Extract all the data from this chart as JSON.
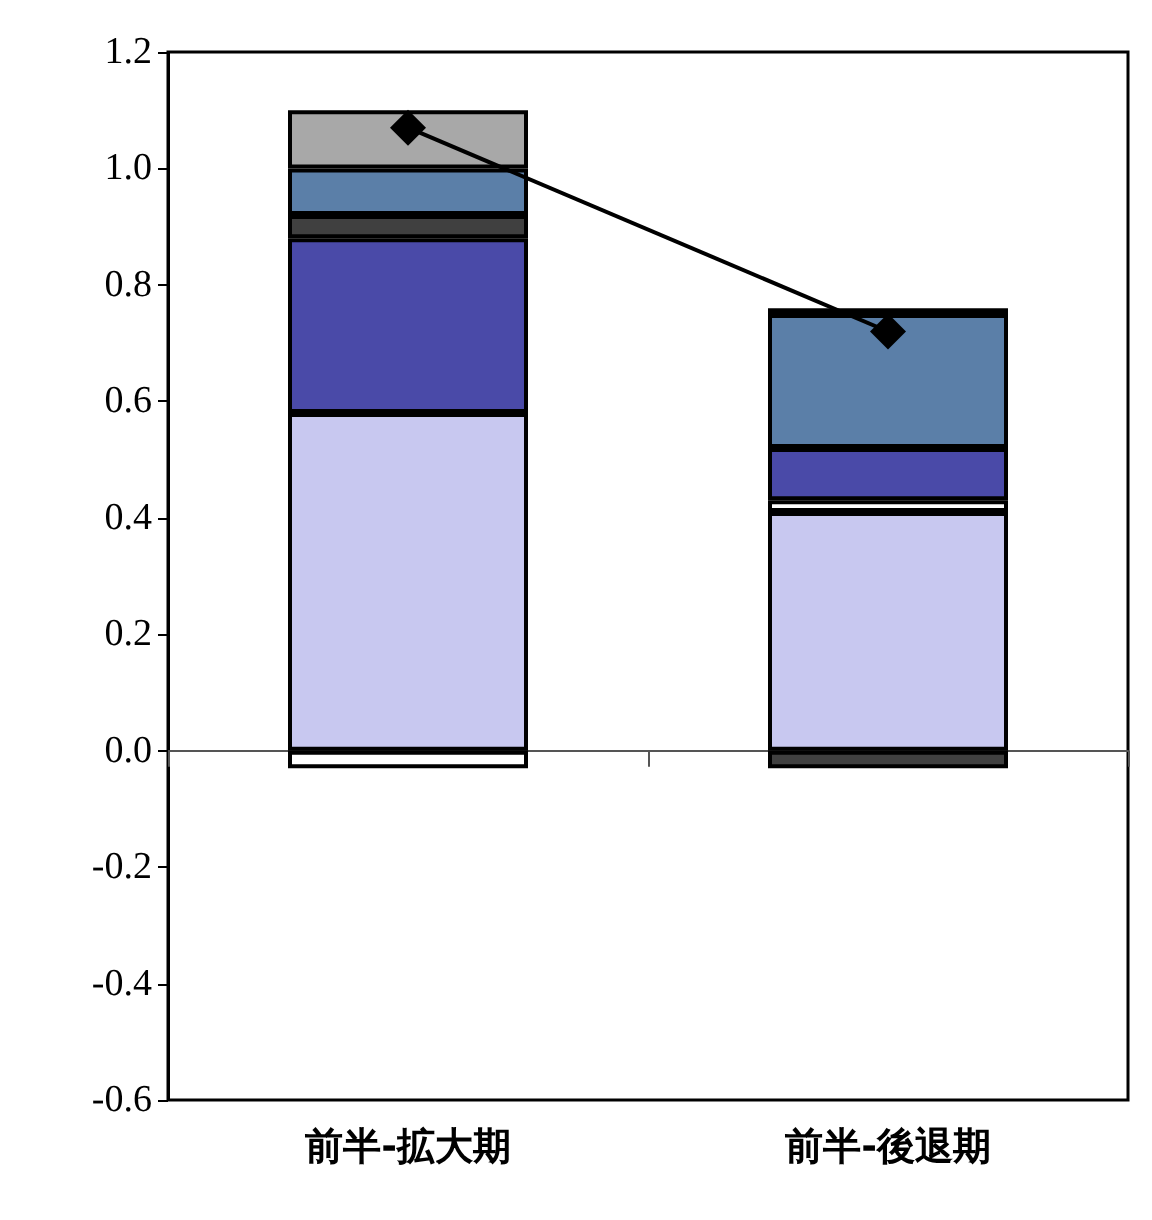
{
  "chart_data": {
    "type": "bar",
    "stacked": true,
    "categories": [
      "前半-拡大期",
      "前半-後退期"
    ],
    "series": [
      {
        "color": "#c8c8f0",
        "values": [
          0.58,
          0.41
        ]
      },
      {
        "color": "#ffffff",
        "values": [
          -0.03,
          0.02
        ]
      },
      {
        "color": "#4a4aa8",
        "values": [
          0.3,
          0.09
        ]
      },
      {
        "color": "#404040",
        "values": [
          0.04,
          -0.03
        ]
      },
      {
        "color": "#5b7fa8",
        "values": [
          0.08,
          0.23
        ]
      },
      {
        "color": "#a8a8a8",
        "values": [
          0.1,
          0.01
        ]
      },
      {
        "type": "line",
        "color": "#000000",
        "marker": "diamond",
        "values": [
          1.07,
          0.72
        ]
      }
    ],
    "ylim": [
      -0.6,
      1.2
    ],
    "yticks": [
      {
        "value": -0.6,
        "label": "-0.6"
      },
      {
        "value": -0.4,
        "label": "-0.4"
      },
      {
        "value": -0.2,
        "label": "-0.2"
      },
      {
        "value": 0,
        "label": "0.0"
      },
      {
        "value": 0.2,
        "label": "0.2"
      },
      {
        "value": 0.4,
        "label": "0.4"
      },
      {
        "value": 0.6,
        "label": "0.6"
      },
      {
        "value": 0.8,
        "label": "0.8"
      },
      {
        "value": 1.0,
        "label": "1.0"
      },
      {
        "value": 1.2,
        "label": "1.2"
      }
    ],
    "data_labels": false
  }
}
